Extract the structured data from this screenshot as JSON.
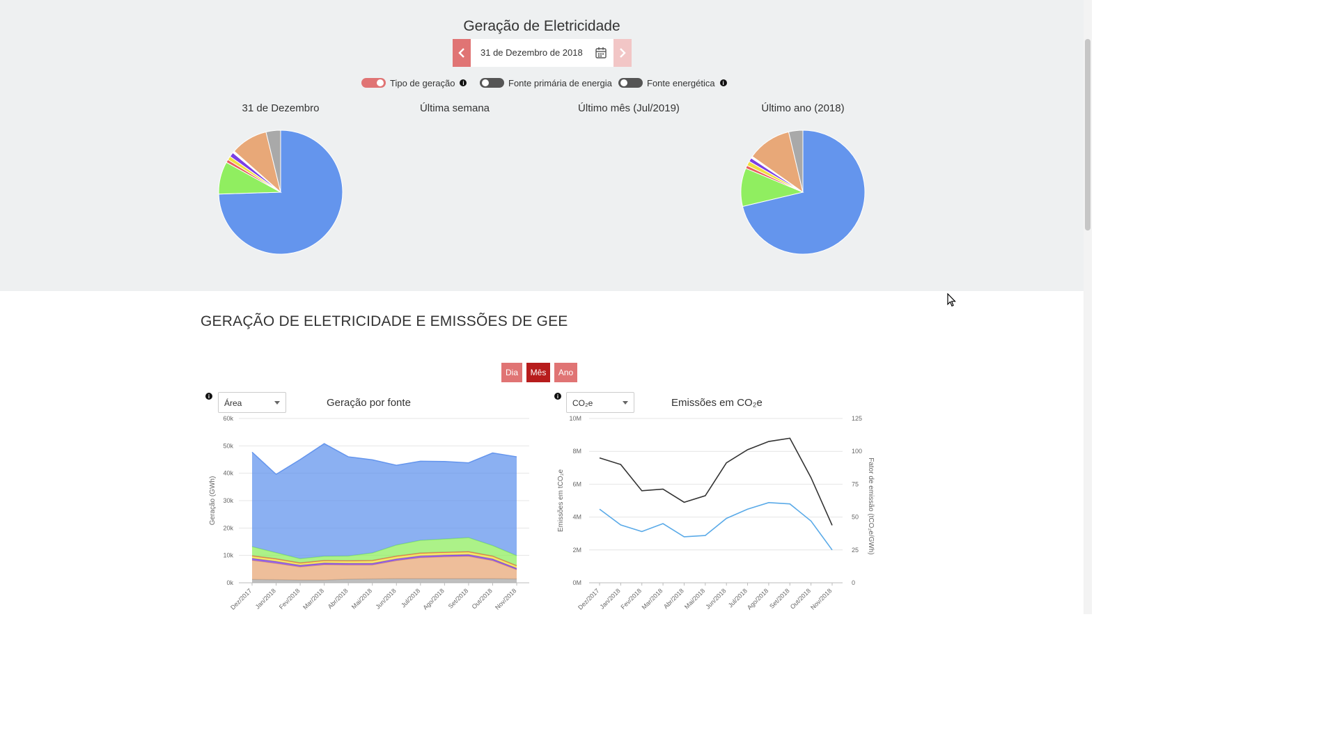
{
  "page_title": "Geração de Eletricidade",
  "date_picker": {
    "date_label": "31 de Dezembro de 2018"
  },
  "toggles": [
    {
      "label": "Tipo de geração",
      "on": true,
      "info": true
    },
    {
      "label": "Fonte primária de energia",
      "on": false,
      "info": false
    },
    {
      "label": "Fonte energética",
      "on": false,
      "info": true
    }
  ],
  "colors": {
    "hydro": "#6495ed",
    "wind": "#90ee60",
    "gas": "#e8a878",
    "other": "#a9a9a9",
    "purple": "#7b3fe4",
    "yellow": "#f0e040",
    "red": "#e86060",
    "accent": "#e07474",
    "accent_dark": "#b71c1c",
    "emissions": "#333333",
    "factor": "#5aaae8"
  },
  "pies": [
    {
      "title": "31 de Dezembro",
      "slices": [
        {
          "value": 74.5,
          "color": "#6495ed"
        },
        {
          "value": 8.5,
          "color": "#90ee60"
        },
        {
          "value": 0.8,
          "color": "#e86060"
        },
        {
          "value": 1.0,
          "color": "#f0e040"
        },
        {
          "value": 1.2,
          "color": "#7b3fe4"
        },
        {
          "value": 0.5,
          "color": "#ffffff"
        },
        {
          "value": 9.7,
          "color": "#e8a878"
        },
        {
          "value": 3.8,
          "color": "#a9a9a9"
        }
      ]
    },
    {
      "title": "Última semana",
      "slices": []
    },
    {
      "title": "Último mês (Jul/2019)",
      "slices": []
    },
    {
      "title": "Último ano (2018)",
      "slices": [
        {
          "value": 71.3,
          "color": "#6495ed"
        },
        {
          "value": 10.0,
          "color": "#90ee60"
        },
        {
          "value": 0.8,
          "color": "#e86060"
        },
        {
          "value": 1.2,
          "color": "#f0e040"
        },
        {
          "value": 1.0,
          "color": "#7b3fe4"
        },
        {
          "value": 0.5,
          "color": "#ffffff"
        },
        {
          "value": 11.5,
          "color": "#e8a878"
        },
        {
          "value": 3.7,
          "color": "#a9a9a9"
        }
      ]
    }
  ],
  "section_title": "GERAÇÃO DE ELETRICIDADE E EMISSÕES DE GEE",
  "period_buttons": {
    "dia": "Dia",
    "mes": "Mês",
    "ano": "Ano",
    "selected": "Mês"
  },
  "generation_chart": {
    "select_value": "Área",
    "title": "Geração por fonte"
  },
  "emissions_chart": {
    "select_value": "CO₂e",
    "title": "Emissões em CO₂e"
  },
  "chart_data": [
    {
      "type": "area",
      "title": "Geração por fonte",
      "ylabel": "Geração (GWh)",
      "ylim": [
        0,
        60000
      ],
      "ytick_labels": [
        "0k",
        "10k",
        "20k",
        "30k",
        "40k",
        "50k",
        "60k"
      ],
      "categories": [
        "Dez/2017",
        "Jan/2018",
        "Fev/2018",
        "Mar/2018",
        "Abr/2018",
        "Mai/2018",
        "Jun/2018",
        "Jul/2018",
        "Ago/2018",
        "Set/2018",
        "Out/2018",
        "Nov/2018"
      ],
      "series": [
        {
          "color": "#a9a9a9",
          "values": [
            1200,
            1100,
            1000,
            1000,
            1300,
            1400,
            1500,
            1500,
            1500,
            1500,
            1500,
            1400
          ]
        },
        {
          "color": "#e8a878",
          "values": [
            7000,
            6000,
            4800,
            5600,
            5200,
            5100,
            6600,
            7700,
            8000,
            8200,
            6600,
            3400
          ]
        },
        {
          "color": "#7b3fe4",
          "values": [
            700,
            700,
            600,
            600,
            600,
            600,
            600,
            600,
            600,
            600,
            600,
            500
          ]
        },
        {
          "color": "#f0e040",
          "values": [
            800,
            800,
            700,
            800,
            800,
            900,
            900,
            900,
            900,
            900,
            900,
            800
          ]
        },
        {
          "color": "#e86060",
          "values": [
            200,
            200,
            200,
            200,
            200,
            200,
            200,
            200,
            200,
            200,
            200,
            200
          ]
        },
        {
          "color": "#90ee60",
          "values": [
            3300,
            2200,
            1500,
            1500,
            1700,
            2700,
            4000,
            4600,
            4800,
            5100,
            3800,
            3600
          ]
        },
        {
          "color": "#6495ed",
          "values": [
            34500,
            28600,
            36200,
            41100,
            36200,
            34000,
            29100,
            28900,
            28300,
            27300,
            33800,
            36100
          ]
        }
      ]
    },
    {
      "type": "line",
      "title": "Emissões em CO₂e",
      "ylabel": "Emissões em tCO₂e",
      "y2label": "Fator de emissão (tCO₂e/GWh)",
      "ylim": [
        0,
        10000000
      ],
      "ytick_labels": [
        "0M",
        "2M",
        "4M",
        "6M",
        "8M",
        "10M"
      ],
      "y2lim": [
        0,
        125
      ],
      "y2tick_labels": [
        "0",
        "25",
        "50",
        "75",
        "100",
        "125"
      ],
      "categories": [
        "Dez/2017",
        "Jan/2018",
        "Fev/2018",
        "Mar/2018",
        "Abr/2018",
        "Mai/2018",
        "Jun/2018",
        "Jul/2018",
        "Ago/2018",
        "Set/2018",
        "Out/2018",
        "Nov/2018"
      ],
      "series": [
        {
          "axis": "left",
          "color": "#333333",
          "values": [
            7600000,
            7200000,
            5600000,
            5700000,
            4900000,
            5300000,
            7300000,
            8100000,
            8600000,
            8800000,
            6400000,
            3500000
          ]
        },
        {
          "axis": "right",
          "color": "#5aaae8",
          "values": [
            56,
            44,
            39,
            45,
            35,
            36,
            49,
            56,
            61,
            60,
            47,
            25
          ]
        }
      ]
    }
  ]
}
